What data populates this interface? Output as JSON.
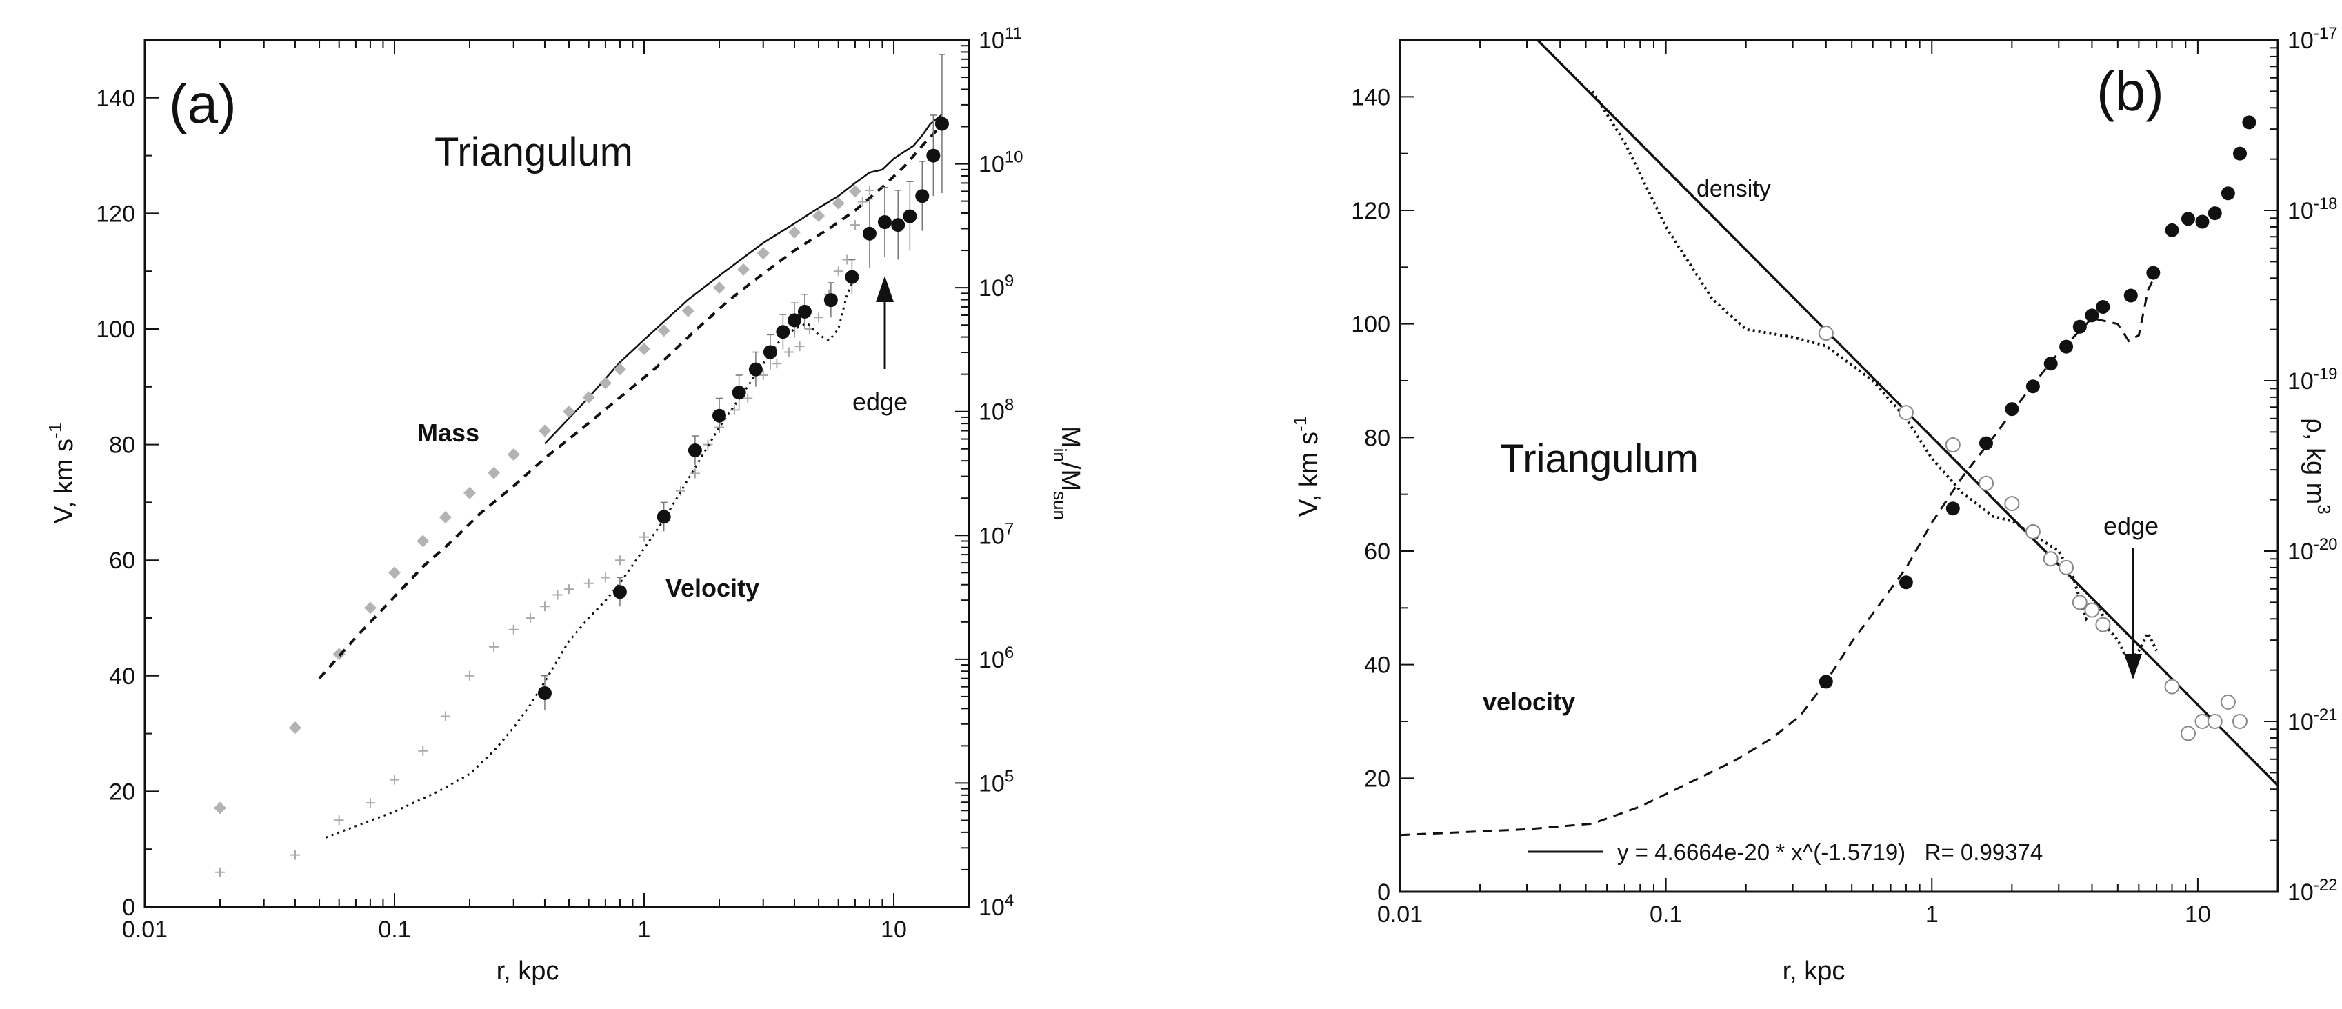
{
  "chart_data": [
    {
      "type": "scatter",
      "panel_label": "(a)",
      "title": "Triangulum",
      "x_axis": {
        "label": "r, kpc",
        "scale": "log",
        "range": [
          0.01,
          20
        ],
        "ticks": [
          0.01,
          0.1,
          1,
          10
        ],
        "tick_labels": [
          "0.01",
          "0.1",
          "1",
          "10"
        ]
      },
      "y_axis_left": {
        "label_base": "V, km s",
        "label_sup": "-1",
        "range": [
          0,
          150
        ],
        "ticks": [
          0,
          20,
          40,
          60,
          80,
          100,
          120,
          140
        ]
      },
      "y_axis_right": {
        "label_parts": [
          "M",
          "in",
          "/M",
          "sun"
        ],
        "scale": "log",
        "range": [
          10000,
          100000000000
        ],
        "exp_base": "10",
        "exponents": [
          "4",
          "5",
          "6",
          "7",
          "8",
          "9",
          "10",
          "11"
        ]
      },
      "annotations": {
        "mass": "Mass",
        "velocity": "Velocity",
        "edge": "edge"
      },
      "series": [
        {
          "name": "Velocity (filled circles, error bars)",
          "axis": "left",
          "x": [
            0.4,
            0.8,
            1.2,
            1.6,
            2.0,
            2.4,
            2.8,
            3.2,
            3.6,
            4.0,
            4.4,
            5.6,
            6.8,
            8.0,
            9.2,
            10.4,
            11.6,
            13.0,
            14.4,
            15.6
          ],
          "y": [
            37,
            54.5,
            67.5,
            79,
            85,
            89,
            93,
            96,
            99.5,
            101.5,
            103,
            105,
            109,
            116.5,
            118.5,
            118,
            119.5,
            123,
            130,
            135.5
          ],
          "err": [
            3,
            2.5,
            2.5,
            2.5,
            3,
            3,
            3,
            3,
            3,
            3,
            3,
            3,
            3,
            6,
            6,
            6,
            6,
            6,
            7,
            12
          ]
        },
        {
          "name": "Velocity data (crosses)",
          "axis": "left",
          "x": [
            0.02,
            0.04,
            0.06,
            0.08,
            0.1,
            0.13,
            0.16,
            0.2,
            0.25,
            0.3,
            0.35,
            0.4,
            0.45,
            0.5,
            0.6,
            0.7,
            0.8,
            1.0,
            1.2,
            1.4,
            1.6,
            1.8,
            2.0,
            2.3,
            2.6,
            3.0,
            3.4,
            3.8,
            4.2,
            4.6,
            5.0,
            5.5,
            6.0,
            6.5,
            7.0,
            7.5,
            8.0
          ],
          "y": [
            6,
            9,
            15,
            18,
            22,
            27,
            33,
            40,
            45,
            48,
            50,
            52,
            54,
            55,
            56,
            57,
            60,
            64,
            68,
            72,
            75,
            80,
            83,
            86,
            88,
            92,
            94,
            96,
            97,
            100,
            102,
            106,
            110,
            112,
            118,
            122,
            124
          ]
        },
        {
          "name": "Mass (grey diamonds)",
          "axis": "right",
          "x": [
            0.02,
            0.04,
            0.06,
            0.08,
            0.1,
            0.13,
            0.16,
            0.2,
            0.25,
            0.3,
            0.4,
            0.5,
            0.6,
            0.7,
            0.8,
            1.0,
            1.2,
            1.5,
            2.0,
            2.5,
            3.0,
            4.0,
            5.0,
            6.0,
            7.0
          ],
          "y": [
            63000,
            280000,
            1100000,
            2600000,
            5000000,
            9000000,
            14000000,
            22000000,
            32000000,
            45000000,
            70000000,
            100000000,
            130000000,
            170000000,
            220000000,
            320000000,
            450000000,
            650000000,
            1000000000,
            1400000000,
            1900000000,
            2800000000,
            3800000000,
            4800000000,
            6000000000
          ]
        },
        {
          "name": "Mass model (dashed black)",
          "axis": "right",
          "x": [
            0.05,
            0.07,
            0.1,
            0.13,
            0.17,
            0.22,
            0.3,
            0.4,
            0.55,
            0.8,
            1.1,
            1.6,
            2.2,
            3.0,
            4.0,
            5.5,
            7.0,
            9.0,
            11.0,
            13.0,
            15.0
          ],
          "y": [
            700000,
            1500000,
            3200000,
            5600000,
            9000000,
            15000000,
            25000000,
            42000000,
            70000000,
            130000000,
            220000000,
            450000000,
            800000000,
            1300000000,
            2000000000,
            3000000000,
            4200000000,
            6500000000,
            9500000000,
            14000000000,
            19000000000
          ]
        },
        {
          "name": "Mass model (solid black)",
          "axis": "right",
          "x": [
            0.4,
            0.6,
            0.8,
            1.0,
            1.5,
            2.0,
            3.0,
            4.0,
            5.0,
            6.0,
            7.0,
            8.0,
            9.0,
            10.0,
            11.0,
            12.0,
            13.0,
            14.0,
            15.6
          ],
          "y": [
            55000000,
            130000000,
            250000000,
            380000000,
            800000000,
            1250000000,
            2300000000,
            3300000000,
            4400000000,
            5500000000,
            7000000000,
            8500000000,
            9000000000,
            11000000000,
            12500000000,
            14000000000,
            17000000000,
            21000000000,
            25000000000
          ]
        },
        {
          "name": "Velocity model (dotted)",
          "axis": "left",
          "x": [
            0.053,
            0.07,
            0.1,
            0.15,
            0.2,
            0.25,
            0.3,
            0.35,
            0.4,
            0.5,
            0.6,
            0.7,
            0.8,
            1.0,
            1.2,
            1.5,
            2.0,
            2.5,
            3.0,
            3.5,
            4.0,
            4.5,
            5.0,
            5.5,
            6.0,
            6.5,
            7.0
          ],
          "y": [
            12,
            14,
            16.5,
            20,
            23,
            27,
            31,
            35,
            39,
            46,
            50,
            53,
            56,
            62,
            67,
            74,
            83,
            89,
            94,
            98,
            100,
            101,
            99,
            98,
            100,
            106,
            109
          ]
        }
      ]
    },
    {
      "type": "scatter",
      "panel_label": "(b)",
      "title": "Triangulum",
      "x_axis": {
        "label": "r, kpc",
        "scale": "log",
        "range": [
          0.01,
          20
        ],
        "ticks": [
          0.01,
          0.1,
          1,
          10
        ],
        "tick_labels": [
          "0.01",
          "0.1",
          "1",
          "10"
        ]
      },
      "y_axis_left": {
        "label_base": "V, km s",
        "label_sup": "-1",
        "range": [
          0,
          150
        ],
        "ticks": [
          0,
          20,
          40,
          60,
          80,
          100,
          120,
          140
        ]
      },
      "y_axis_right": {
        "label_base": "ρ, kg m",
        "label_sup": "3",
        "scale": "log",
        "range": [
          1e-22,
          1e-17
        ],
        "exp_base": "10",
        "exponents": [
          "-22",
          "-21",
          "-20",
          "-19",
          "-18",
          "-17"
        ]
      },
      "annotations": {
        "density": "density",
        "velocity": "velocity",
        "edge": "edge"
      },
      "fit": {
        "legend": "y = 4.6664e-20 * x^(-1.5719)   R= 0.99374",
        "a": 4.6664e-20,
        "b": -1.5719,
        "R": 0.99374
      },
      "series": [
        {
          "name": "velocity (filled circles)",
          "axis": "left",
          "x": [
            0.4,
            0.8,
            1.2,
            1.6,
            2.0,
            2.4,
            2.8,
            3.2,
            3.6,
            4.0,
            4.4,
            5.6,
            6.8,
            8.0,
            9.2,
            10.4,
            11.6,
            13.0,
            14.4,
            15.6
          ],
          "y": [
            37,
            54.5,
            67.5,
            79,
            85,
            89,
            93,
            96,
            99.5,
            101.5,
            103,
            105,
            109,
            116.5,
            118.5,
            118,
            119.5,
            123,
            130,
            135.5
          ]
        },
        {
          "name": "density (open circles)",
          "axis": "right",
          "x": [
            0.4,
            0.8,
            1.2,
            1.6,
            2.0,
            2.4,
            2.8,
            3.2,
            3.6,
            4.0,
            4.4,
            8.0,
            9.2,
            10.4,
            11.6,
            13.0,
            14.4
          ],
          "y": [
            1.9e-19,
            6.5e-20,
            4.2e-20,
            2.5e-20,
            1.9e-20,
            1.3e-20,
            9e-21,
            8e-21,
            5e-21,
            4.5e-21,
            3.7e-21,
            1.6e-21,
            8.5e-22,
            1e-21,
            1e-21,
            1.3e-21,
            1e-21
          ]
        },
        {
          "name": "density model (dotted)",
          "axis": "right",
          "x": [
            0.053,
            0.07,
            0.1,
            0.15,
            0.2,
            0.3,
            0.4,
            0.6,
            0.8,
            1.0,
            1.3,
            1.7,
            2.0,
            2.5,
            3.0,
            3.4,
            3.8,
            4.2,
            4.6,
            5.0,
            5.5,
            6.0,
            6.5,
            7.0
          ],
          "y": [
            5e-18,
            2.5e-18,
            8e-19,
            3e-19,
            2e-19,
            1.8e-19,
            1.6e-19,
            1e-19,
            6e-20,
            3.5e-20,
            2.2e-20,
            1.6e-20,
            1.5e-20,
            1.2e-20,
            1e-20,
            7e-21,
            4e-21,
            5e-21,
            3.5e-21,
            3e-21,
            2.2e-21,
            2.6e-21,
            3.3e-21,
            2.6e-21
          ]
        },
        {
          "name": "velocity model (dashed)",
          "axis": "left",
          "x": [
            0.01,
            0.03,
            0.053,
            0.08,
            0.12,
            0.18,
            0.25,
            0.32,
            0.4,
            0.5,
            0.6,
            0.8,
            1.0,
            1.3,
            1.7,
            2.2,
            3.0,
            4.0,
            5.0,
            5.5,
            6.0,
            6.5,
            7.0
          ],
          "y": [
            10,
            11,
            12,
            15,
            19,
            23,
            27,
            31,
            37,
            44,
            49,
            57,
            65,
            73,
            80,
            87,
            95,
            101,
            100,
            97,
            98,
            106,
            109
          ]
        }
      ]
    }
  ]
}
